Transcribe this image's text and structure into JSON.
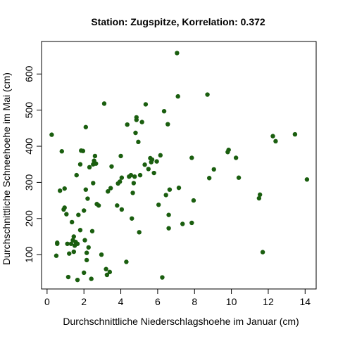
{
  "chart_data": {
    "type": "scatter",
    "title": "Station: Zugspitze, Korrelation: 0.372",
    "xlabel": "Durchschnittliche Niederschlagshoehe im Januar (cm)",
    "ylabel": "Durchschnittliche Schneehoehe im Mai (cm)",
    "xlim": [
      -0.3,
      14.6
    ],
    "ylim": [
      5,
      690
    ],
    "x_ticks": [
      0,
      2,
      4,
      6,
      8,
      10,
      12,
      14
    ],
    "y_ticks": [
      100,
      200,
      300,
      400,
      500,
      600
    ],
    "grid": false,
    "legend": "none",
    "point_color": "#1a5e0f",
    "points": [
      {
        "x": 0.25,
        "y": 432
      },
      {
        "x": 0.5,
        "y": 97
      },
      {
        "x": 0.55,
        "y": 130
      },
      {
        "x": 0.55,
        "y": 133
      },
      {
        "x": 0.7,
        "y": 277
      },
      {
        "x": 0.8,
        "y": 386
      },
      {
        "x": 0.9,
        "y": 225
      },
      {
        "x": 0.95,
        "y": 230
      },
      {
        "x": 0.95,
        "y": 283
      },
      {
        "x": 1.05,
        "y": 212
      },
      {
        "x": 1.1,
        "y": 130
      },
      {
        "x": 1.15,
        "y": 38
      },
      {
        "x": 1.2,
        "y": 103
      },
      {
        "x": 1.3,
        "y": 130
      },
      {
        "x": 1.35,
        "y": 190
      },
      {
        "x": 1.4,
        "y": 140
      },
      {
        "x": 1.45,
        "y": 150
      },
      {
        "x": 1.45,
        "y": 108
      },
      {
        "x": 1.5,
        "y": 125
      },
      {
        "x": 1.55,
        "y": 135
      },
      {
        "x": 1.6,
        "y": 320
      },
      {
        "x": 1.65,
        "y": 30
      },
      {
        "x": 1.65,
        "y": 130
      },
      {
        "x": 1.7,
        "y": 210
      },
      {
        "x": 1.8,
        "y": 168
      },
      {
        "x": 1.8,
        "y": 350
      },
      {
        "x": 1.85,
        "y": 388
      },
      {
        "x": 1.95,
        "y": 387
      },
      {
        "x": 2.0,
        "y": 50
      },
      {
        "x": 2.0,
        "y": 222
      },
      {
        "x": 2.05,
        "y": 140
      },
      {
        "x": 2.1,
        "y": 453
      },
      {
        "x": 2.1,
        "y": 280
      },
      {
        "x": 2.15,
        "y": 105
      },
      {
        "x": 2.15,
        "y": 85
      },
      {
        "x": 2.2,
        "y": 255
      },
      {
        "x": 2.25,
        "y": 120
      },
      {
        "x": 2.3,
        "y": 342
      },
      {
        "x": 2.4,
        "y": 33
      },
      {
        "x": 2.45,
        "y": 165
      },
      {
        "x": 2.5,
        "y": 350
      },
      {
        "x": 2.5,
        "y": 298
      },
      {
        "x": 2.55,
        "y": 360
      },
      {
        "x": 2.6,
        "y": 373
      },
      {
        "x": 2.65,
        "y": 352
      },
      {
        "x": 2.7,
        "y": 240
      },
      {
        "x": 2.8,
        "y": 236
      },
      {
        "x": 2.95,
        "y": 100
      },
      {
        "x": 3.1,
        "y": 518
      },
      {
        "x": 3.2,
        "y": 60
      },
      {
        "x": 3.25,
        "y": 44
      },
      {
        "x": 3.3,
        "y": 275
      },
      {
        "x": 3.4,
        "y": 52
      },
      {
        "x": 3.45,
        "y": 284
      },
      {
        "x": 3.5,
        "y": 344
      },
      {
        "x": 3.8,
        "y": 236
      },
      {
        "x": 3.85,
        "y": 297
      },
      {
        "x": 3.95,
        "y": 302
      },
      {
        "x": 4.0,
        "y": 373
      },
      {
        "x": 4.05,
        "y": 313
      },
      {
        "x": 4.05,
        "y": 225
      },
      {
        "x": 4.3,
        "y": 80
      },
      {
        "x": 4.35,
        "y": 460
      },
      {
        "x": 4.45,
        "y": 316
      },
      {
        "x": 4.55,
        "y": 320
      },
      {
        "x": 4.6,
        "y": 200
      },
      {
        "x": 4.65,
        "y": 271
      },
      {
        "x": 4.7,
        "y": 298
      },
      {
        "x": 4.75,
        "y": 316
      },
      {
        "x": 4.8,
        "y": 437
      },
      {
        "x": 4.85,
        "y": 480
      },
      {
        "x": 4.85,
        "y": 473
      },
      {
        "x": 4.95,
        "y": 412
      },
      {
        "x": 5.0,
        "y": 162
      },
      {
        "x": 5.05,
        "y": 320
      },
      {
        "x": 5.15,
        "y": 467
      },
      {
        "x": 5.3,
        "y": 349
      },
      {
        "x": 5.35,
        "y": 516
      },
      {
        "x": 5.5,
        "y": 337
      },
      {
        "x": 5.6,
        "y": 367
      },
      {
        "x": 5.65,
        "y": 356
      },
      {
        "x": 5.7,
        "y": 363
      },
      {
        "x": 5.8,
        "y": 326
      },
      {
        "x": 5.95,
        "y": 358
      },
      {
        "x": 6.05,
        "y": 238
      },
      {
        "x": 6.15,
        "y": 375
      },
      {
        "x": 6.25,
        "y": 37
      },
      {
        "x": 6.35,
        "y": 497
      },
      {
        "x": 6.45,
        "y": 265
      },
      {
        "x": 6.55,
        "y": 461
      },
      {
        "x": 6.6,
        "y": 210
      },
      {
        "x": 6.6,
        "y": 173
      },
      {
        "x": 6.65,
        "y": 280
      },
      {
        "x": 7.05,
        "y": 658
      },
      {
        "x": 7.1,
        "y": 538
      },
      {
        "x": 7.15,
        "y": 285
      },
      {
        "x": 7.35,
        "y": 185
      },
      {
        "x": 7.85,
        "y": 188
      },
      {
        "x": 7.85,
        "y": 368
      },
      {
        "x": 7.95,
        "y": 250
      },
      {
        "x": 8.7,
        "y": 543
      },
      {
        "x": 8.8,
        "y": 312
      },
      {
        "x": 9.05,
        "y": 336
      },
      {
        "x": 9.8,
        "y": 384
      },
      {
        "x": 9.85,
        "y": 390
      },
      {
        "x": 10.25,
        "y": 368
      },
      {
        "x": 10.4,
        "y": 313
      },
      {
        "x": 11.5,
        "y": 256
      },
      {
        "x": 11.55,
        "y": 266
      },
      {
        "x": 11.7,
        "y": 107
      },
      {
        "x": 12.25,
        "y": 428
      },
      {
        "x": 12.4,
        "y": 414
      },
      {
        "x": 13.45,
        "y": 433
      },
      {
        "x": 14.1,
        "y": 308
      }
    ]
  }
}
